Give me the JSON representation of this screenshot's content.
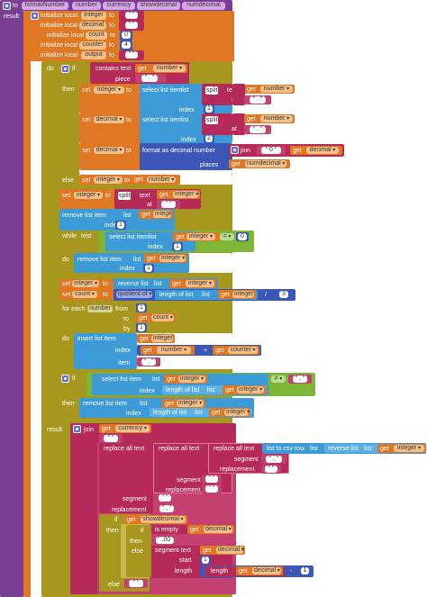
{
  "procedure": {
    "to": "to",
    "name": "formatNumber",
    "params": [
      "number",
      "currency",
      "showdecimal",
      "numdecimal"
    ],
    "result": "result"
  },
  "kw": {
    "initialize_local": "initialize local",
    "to": "to",
    "in": "in",
    "do": "do",
    "then": "then",
    "else": "else",
    "if": "if",
    "set": "set",
    "get": "get",
    "while": "while",
    "test": "test",
    "for_each": "for each",
    "from": "from",
    "by": "by",
    "result": "result",
    "index": "index",
    "at": "at",
    "piece": "piece",
    "places": "places",
    "item": "item",
    "list": "list",
    "segment": "segment",
    "replacement": "replacement",
    "start": "start",
    "length": "length",
    "text": "text",
    "number": "number"
  },
  "locals": [
    {
      "name": "integer",
      "val": " \" \" "
    },
    {
      "name": "decimal",
      "val": " \" \" "
    },
    {
      "name": "count",
      "val": "0"
    },
    {
      "name": "counter",
      "val": "4"
    },
    {
      "name": "output",
      "val": " \" \" "
    }
  ],
  "blocks": {
    "contains_text": "contains text",
    "select_list_item": "select list item",
    "split": "split",
    "format_as_decimal": "format as decimal number",
    "join": "join",
    "remove_list_item": "remove list item",
    "reverse_list": "reverse list",
    "quotient_of": "quotient of",
    "length_of_list": "length of list",
    "insert_list_item": "insert list item",
    "replace_all_text": "replace all text",
    "list_to_csv_row": "list to csv row",
    "is_empty": "is empty",
    "segment_text": "segment text",
    "length": "length",
    "neq": "≠",
    "eq": "=",
    "plus": "+",
    "minus": "-",
    "divide": "/"
  },
  "vars": {
    "number": "number",
    "integer": "integer",
    "decimal": "decimal",
    "numdecimal": "numdecimal",
    "count": "count",
    "counter": "counter",
    "currency": "currency",
    "showdecimal": "showdecimal",
    "output": "output"
  },
  "lits": {
    "dot": " \" . \" ",
    "empty": " \" \" ",
    "comma": " \" , \" ",
    "zero_str": " \" 0 \" ",
    "dot00": " \" .00 \" ",
    "n0": "0",
    "n1": "1",
    "n2": "2",
    "n3": "3",
    "n4": "4"
  },
  "colors": {
    "procedure": "#7a3f92",
    "variable": "#e07823",
    "text": "#b62a5a",
    "control": "#a7971e",
    "list": "#3c9ad6",
    "math": "#3d57b8",
    "logic": "#7db637"
  }
}
